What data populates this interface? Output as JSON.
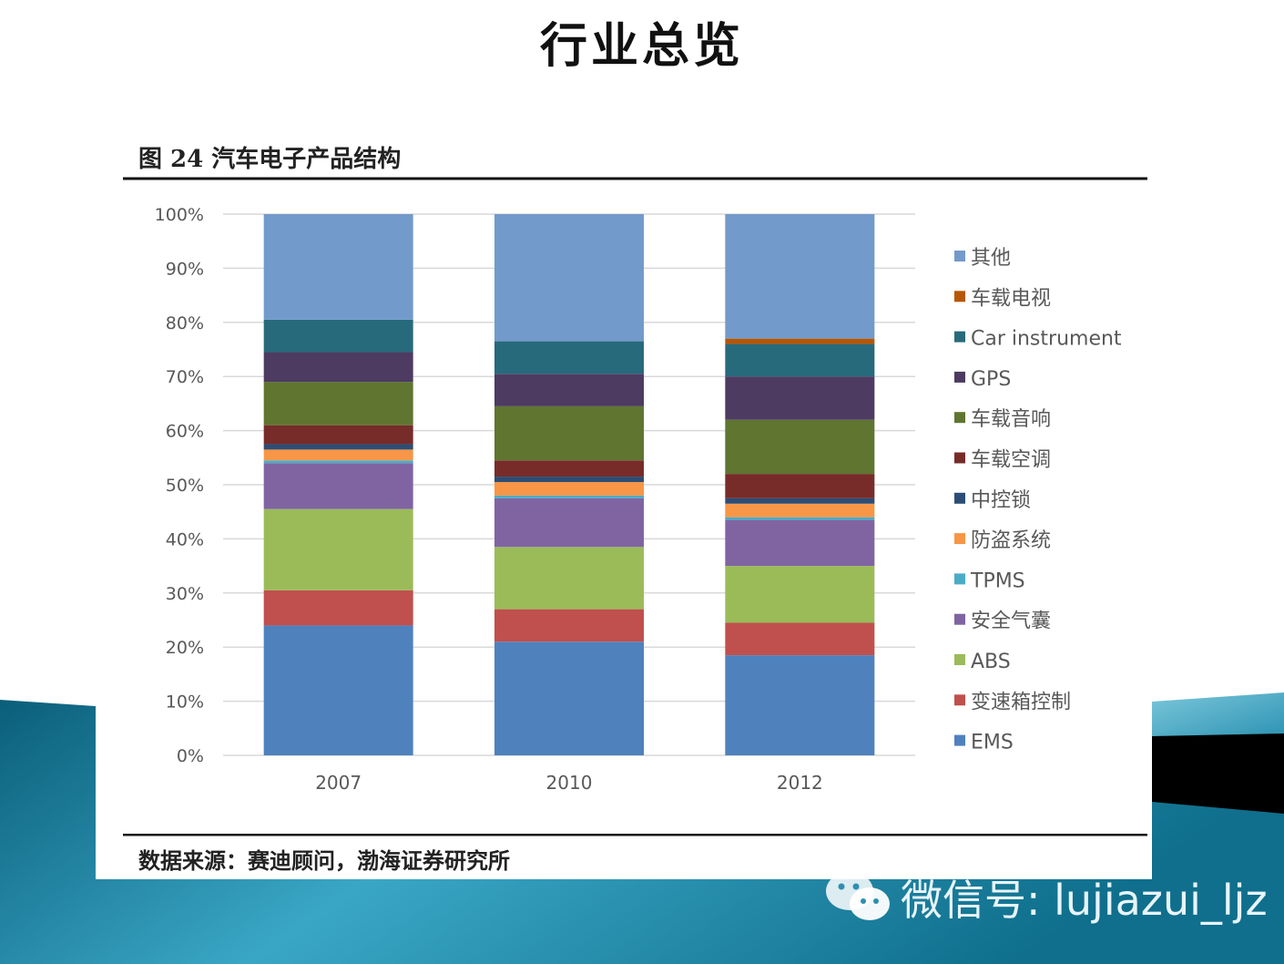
{
  "slide_title": "行业总览",
  "figure_caption": "图 24   汽车电子产品结构",
  "source_note": "数据来源：赛迪顾问，渤海证券研究所",
  "watermark_text": "微信号: lujiazui_ljz",
  "chart_data": {
    "type": "bar",
    "stacked": true,
    "categories": [
      "2007",
      "2010",
      "2012"
    ],
    "y_ticks": [
      "0%",
      "10%",
      "20%",
      "30%",
      "40%",
      "50%",
      "60%",
      "70%",
      "80%",
      "90%",
      "100%"
    ],
    "ylim": [
      0,
      100
    ],
    "grid": true,
    "legend_position": "right",
    "series": [
      {
        "name": "EMS",
        "color": "#4f81bd",
        "values": [
          24,
          21,
          18.5
        ]
      },
      {
        "name": "变速箱控制",
        "color": "#c0504d",
        "values": [
          6.5,
          6,
          6
        ]
      },
      {
        "name": "ABS",
        "color": "#9bbb59",
        "values": [
          15,
          11.5,
          10.5
        ]
      },
      {
        "name": "安全气囊",
        "color": "#8064a2",
        "values": [
          8.5,
          9,
          8.5
        ]
      },
      {
        "name": "TPMS",
        "color": "#4bacc6",
        "values": [
          0.5,
          0.5,
          0.5
        ]
      },
      {
        "name": "防盗系统",
        "color": "#f79646",
        "values": [
          2,
          2.5,
          2.5
        ]
      },
      {
        "name": "中控锁",
        "color": "#2c4d75",
        "values": [
          1,
          1,
          1
        ]
      },
      {
        "name": "车载空调",
        "color": "#772c2a",
        "values": [
          3.5,
          3,
          4.5
        ]
      },
      {
        "name": "车载音响",
        "color": "#5f7530",
        "values": [
          8,
          10,
          10
        ]
      },
      {
        "name": "GPS",
        "color": "#4d3b62",
        "values": [
          5.5,
          6,
          8
        ]
      },
      {
        "name": "Car instrument",
        "color": "#276a7c",
        "values": [
          6,
          6,
          6
        ]
      },
      {
        "name": "车载电视",
        "color": "#b65708",
        "values": [
          0,
          0,
          1
        ]
      },
      {
        "name": "其他",
        "color": "#729aca",
        "values": [
          19.5,
          23.5,
          23
        ]
      }
    ]
  },
  "colors": {
    "teal_dark": "#0a6a85",
    "teal_light": "#4fb4d0",
    "black_band": "#000000"
  }
}
